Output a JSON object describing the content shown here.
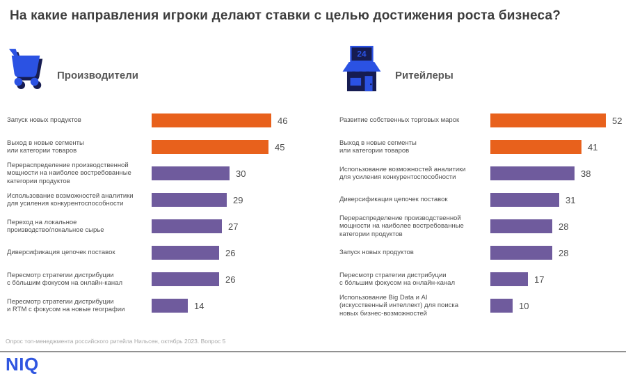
{
  "page": {
    "title": "На какие направления игроки делают ставки с целью достижения роста бизнеса?"
  },
  "colors": {
    "orange": "#E8611C",
    "purple": "#6F5B9D",
    "icon_blue": "#2B52E3",
    "icon_navy": "#161C51",
    "logo_blue": "#3056E0"
  },
  "chart_data": [
    {
      "type": "bar",
      "orientation": "horizontal",
      "panel_title": "Производители",
      "icon": "shopping-cart-icon",
      "value_labels_shown": true,
      "categories": [
        "Запуск новых продуктов",
        "Выход в новые сегменты\nили категории товаров",
        "Перераспределение производственной\nмощности на наиболее востребованные\nкатегории продуктов",
        "Использование возможностей аналитики\nдля усиления конкурентоспособности",
        "Переход на локальное\nпроизводство/локальное сырье",
        "Диверсификация цепочек поставок",
        "Пересмотр стратегии дистрибуции\nс бо́льшим фокусом на онлайн-канал",
        "Пересмотр стратегии дистрибуции\nи RTM с фокусом на новые географии"
      ],
      "values": [
        46,
        45,
        30,
        29,
        27,
        26,
        26,
        14
      ],
      "bar_colors": [
        "orange",
        "orange",
        "purple",
        "purple",
        "purple",
        "purple",
        "purple",
        "purple"
      ]
    },
    {
      "type": "bar",
      "orientation": "horizontal",
      "panel_title": "Ритейлеры",
      "icon": "storefront-icon",
      "icon_sign_text": "24",
      "value_labels_shown": true,
      "categories": [
        "Развитие собственных торговых марок",
        "Выход в новые сегменты\nили категории товаров",
        "Использование возможностей аналитики\nдля усиления конкурентоспособности",
        "Диверсификация цепочек поставок",
        "Перераспределение производственной\nмощности на наиболее востребованные\nкатегории продуктов",
        "Запуск новых продуктов",
        "Пересмотр стратегии дистрибуции\nс бо́льшим фокусом на онлайн-канал",
        "Использование Big Data и AI\n(искусственный интеллект) для поиска\nновых бизнес-возможностей"
      ],
      "values": [
        52,
        41,
        38,
        31,
        28,
        28,
        17,
        10
      ],
      "bar_colors": [
        "orange",
        "orange",
        "purple",
        "purple",
        "purple",
        "purple",
        "purple",
        "purple"
      ]
    }
  ],
  "footer": {
    "source_note": "Опрос топ-менеджмента российского ритейла Нильсен, октябрь 2023. Вопрос 5",
    "logo_text": "NIQ"
  }
}
